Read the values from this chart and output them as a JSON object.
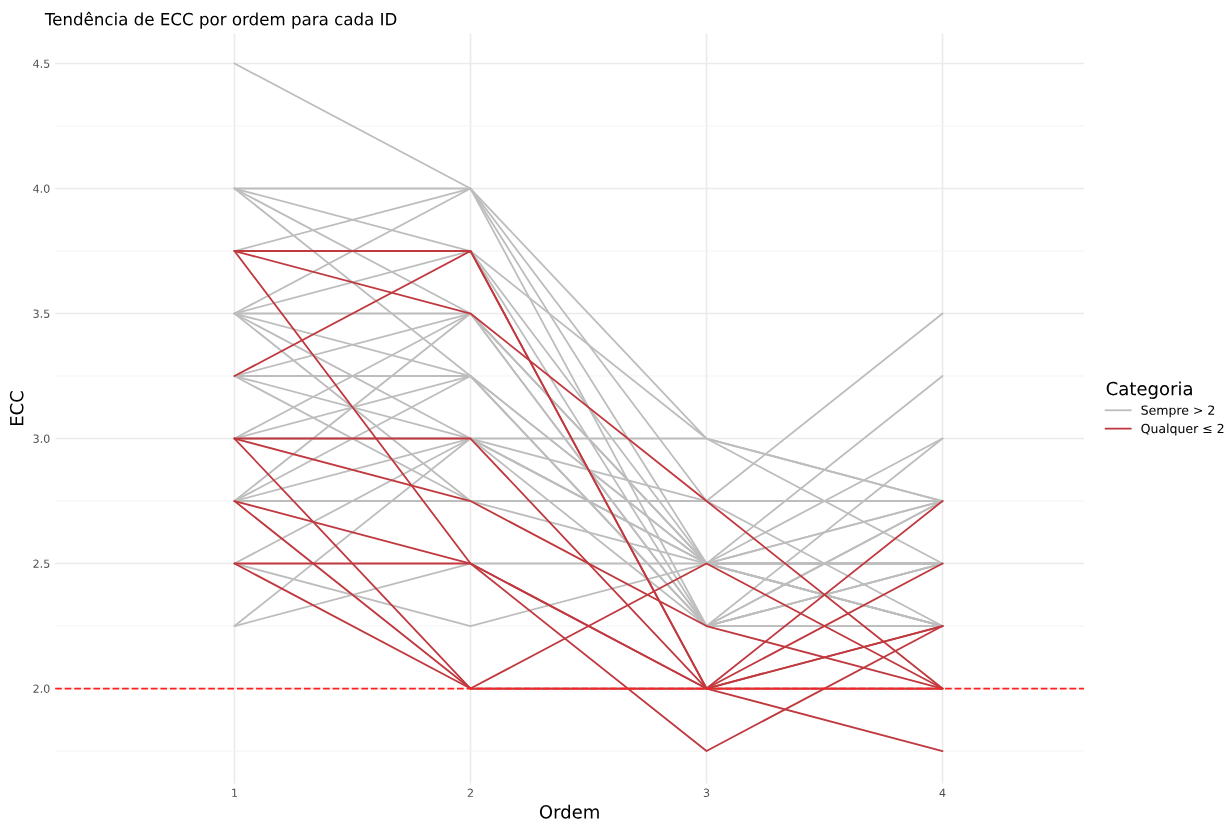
{
  "chart_data": {
    "type": "line",
    "title": "Tendência de ECC por ordem para cada ID",
    "xlabel": "Ordem",
    "ylabel": "ECC",
    "legend_title": "Categoria",
    "xlim": [
      0.24,
      4.6
    ],
    "xticks": [
      1,
      2,
      3,
      4
    ],
    "ylim": [
      1.62,
      4.62
    ],
    "yticks": [
      {
        "value": 2.0,
        "label": "2.0"
      },
      {
        "value": 2.5,
        "label": "2.5"
      },
      {
        "value": 3.0,
        "label": "3.0"
      },
      {
        "value": 3.5,
        "label": "3.5"
      },
      {
        "value": 4.0,
        "label": "4.0"
      },
      {
        "value": 4.5,
        "label": "4.5"
      }
    ],
    "grid": true,
    "legend": "right",
    "marker": "none",
    "line_style": "solid",
    "ref_lines": [
      {
        "axis": "y",
        "value": 2.0,
        "color": "#ff2020",
        "line_style": "dashed"
      }
    ],
    "series": [
      {
        "name": "Sempre > 2",
        "color": "#bdbdbd",
        "x": [
          1,
          2,
          3,
          4
        ],
        "values": [
          4.5,
          4.0,
          3.0,
          2.75
        ]
      },
      {
        "color": "#bdbdbd",
        "x": [
          1,
          2,
          3,
          4
        ],
        "values": [
          4.0,
          4.0,
          2.75,
          3.5
        ]
      },
      {
        "color": "#bdbdbd",
        "x": [
          1,
          2,
          3,
          4
        ],
        "values": [
          4.0,
          3.75,
          2.5,
          3.25
        ]
      },
      {
        "color": "#bdbdbd",
        "x": [
          1,
          2,
          3,
          4
        ],
        "values": [
          4.0,
          3.5,
          2.5,
          3.0
        ]
      },
      {
        "color": "#bdbdbd",
        "x": [
          1,
          2,
          3,
          4
        ],
        "values": [
          4.0,
          3.25,
          2.25,
          3.0
        ]
      },
      {
        "color": "#bdbdbd",
        "x": [
          1,
          2,
          3,
          4
        ],
        "values": [
          3.75,
          4.0,
          2.5,
          2.5
        ]
      },
      {
        "color": "#bdbdbd",
        "x": [
          1,
          2,
          3,
          4
        ],
        "values": [
          3.75,
          3.75,
          2.25,
          2.75
        ]
      },
      {
        "color": "#bdbdbd",
        "x": [
          1,
          2,
          3,
          4
        ],
        "values": [
          3.5,
          4.0,
          2.25,
          2.5
        ]
      },
      {
        "color": "#bdbdbd",
        "x": [
          1,
          2,
          3,
          4
        ],
        "values": [
          3.5,
          3.75,
          3.0,
          2.5
        ]
      },
      {
        "color": "#bdbdbd",
        "x": [
          1,
          2,
          3,
          4
        ],
        "values": [
          3.5,
          3.5,
          2.5,
          2.25
        ]
      },
      {
        "color": "#bdbdbd",
        "x": [
          1,
          2,
          3,
          4
        ],
        "values": [
          3.5,
          3.25,
          2.5,
          2.5
        ]
      },
      {
        "color": "#bdbdbd",
        "x": [
          1,
          2,
          3,
          4
        ],
        "values": [
          3.5,
          3.0,
          3.0,
          2.75
        ]
      },
      {
        "color": "#bdbdbd",
        "x": [
          1,
          2,
          3,
          4
        ],
        "values": [
          3.5,
          2.75,
          2.75,
          2.75
        ]
      },
      {
        "color": "#bdbdbd",
        "x": [
          1,
          2,
          3,
          4
        ],
        "values": [
          3.25,
          3.5,
          2.25,
          2.25
        ]
      },
      {
        "color": "#bdbdbd",
        "x": [
          1,
          2,
          3,
          4
        ],
        "values": [
          3.25,
          3.25,
          2.25,
          2.5
        ]
      },
      {
        "color": "#bdbdbd",
        "x": [
          1,
          2,
          3,
          4
        ],
        "values": [
          3.25,
          3.0,
          2.5,
          2.25
        ]
      },
      {
        "color": "#bdbdbd",
        "x": [
          1,
          2,
          3,
          4
        ],
        "values": [
          3.25,
          2.75,
          2.5,
          2.75
        ]
      },
      {
        "color": "#bdbdbd",
        "x": [
          1,
          2,
          3,
          4
        ],
        "values": [
          3.0,
          3.5,
          2.25,
          2.75
        ]
      },
      {
        "color": "#bdbdbd",
        "x": [
          1,
          2,
          3,
          4
        ],
        "values": [
          3.0,
          3.25,
          2.5,
          2.5
        ]
      },
      {
        "color": "#bdbdbd",
        "x": [
          1,
          2,
          3,
          4
        ],
        "values": [
          3.0,
          3.0,
          2.75,
          2.25
        ]
      },
      {
        "color": "#bdbdbd",
        "x": [
          1,
          2,
          3,
          4
        ],
        "values": [
          2.75,
          3.5,
          2.5,
          2.25
        ]
      },
      {
        "color": "#bdbdbd",
        "x": [
          1,
          2,
          3,
          4
        ],
        "values": [
          2.75,
          3.25,
          2.25,
          2.25
        ]
      },
      {
        "color": "#bdbdbd",
        "x": [
          1,
          2,
          3,
          4
        ],
        "values": [
          2.75,
          3.0,
          2.5,
          2.75
        ]
      },
      {
        "color": "#bdbdbd",
        "x": [
          1,
          2,
          3,
          4
        ],
        "values": [
          2.75,
          2.75,
          2.75,
          2.75
        ]
      },
      {
        "color": "#bdbdbd",
        "x": [
          1,
          2,
          3,
          4
        ],
        "values": [
          2.5,
          3.0,
          2.5,
          2.5
        ]
      },
      {
        "color": "#bdbdbd",
        "x": [
          1,
          2,
          3,
          4
        ],
        "values": [
          2.5,
          2.25,
          2.5,
          2.25
        ]
      },
      {
        "color": "#bdbdbd",
        "x": [
          1,
          2,
          3,
          4
        ],
        "values": [
          2.25,
          3.0,
          2.25,
          2.5
        ]
      },
      {
        "color": "#bdbdbd",
        "x": [
          1,
          2,
          3,
          4
        ],
        "values": [
          2.25,
          2.5,
          2.5,
          2.5
        ]
      },
      {
        "name": "Qualquer ≤ 2",
        "color": "#c0393f",
        "x": [
          1,
          2,
          3,
          4
        ],
        "values": [
          3.75,
          3.5,
          2.75,
          2.0
        ]
      },
      {
        "color": "#c0393f",
        "x": [
          1,
          2,
          3,
          4
        ],
        "values": [
          3.25,
          3.75,
          2.0,
          2.75
        ]
      },
      {
        "color": "#c0393f",
        "x": [
          1,
          2,
          3,
          4
        ],
        "values": [
          3.75,
          3.75,
          2.0,
          2.5
        ]
      },
      {
        "color": "#c0393f",
        "x": [
          1,
          2,
          3,
          4
        ],
        "values": [
          3.0,
          2.0,
          2.5,
          2.0
        ]
      },
      {
        "color": "#c0393f",
        "x": [
          1,
          2,
          3,
          4
        ],
        "values": [
          3.0,
          3.0,
          2.0,
          2.0
        ]
      },
      {
        "color": "#c0393f",
        "x": [
          1,
          2,
          3,
          4
        ],
        "values": [
          3.0,
          2.75,
          2.25,
          2.0
        ]
      },
      {
        "color": "#c0393f",
        "x": [
          1,
          2,
          3,
          4
        ],
        "values": [
          2.75,
          2.5,
          2.0,
          1.75
        ]
      },
      {
        "color": "#c0393f",
        "x": [
          1,
          2,
          3,
          4
        ],
        "values": [
          2.5,
          2.5,
          1.75,
          2.25
        ]
      },
      {
        "color": "#c0393f",
        "x": [
          1,
          2,
          3,
          4
        ],
        "values": [
          2.75,
          2.0,
          2.0,
          2.25
        ]
      },
      {
        "color": "#c0393f",
        "x": [
          1,
          2,
          3,
          4
        ],
        "values": [
          3.75,
          2.5,
          2.0,
          2.0
        ]
      },
      {
        "color": "#c0393f",
        "x": [
          1,
          2,
          3,
          4
        ],
        "values": [
          2.5,
          2.0,
          2.0,
          2.25
        ]
      }
    ]
  }
}
